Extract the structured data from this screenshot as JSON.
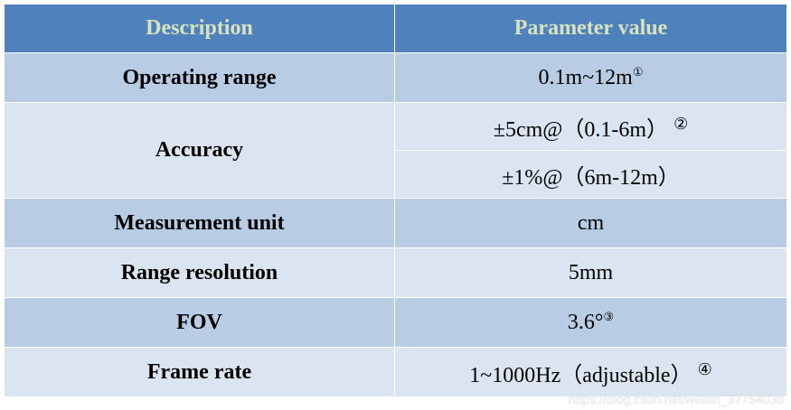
{
  "table": {
    "headers": [
      "Description",
      "Parameter value"
    ],
    "rows": {
      "operating_range": {
        "label": "Operating range",
        "value": "0.1m~12m",
        "note": "①"
      },
      "accuracy": {
        "label": "Accuracy",
        "value_1": "±5cm@（0.1-6m）",
        "note_1": "②",
        "value_2": "±1%@（6m-12m）"
      },
      "measurement_unit": {
        "label": "Measurement unit",
        "value": "cm"
      },
      "range_resolution": {
        "label": "Range resolution",
        "value": "5mm"
      },
      "fov": {
        "label": "FOV",
        "value": "3.6°",
        "note": "③"
      },
      "frame_rate": {
        "label": "Frame rate",
        "value": "1~1000Hz（adjustable）",
        "note": "④"
      }
    }
  },
  "watermark": "https://blog.csdn.net/weixin_37754036",
  "colors": {
    "header_bg": "#4f81bd",
    "header_text": "#d6e3bc",
    "row_dark": "#b8cce4",
    "row_light": "#dbe5f1"
  }
}
